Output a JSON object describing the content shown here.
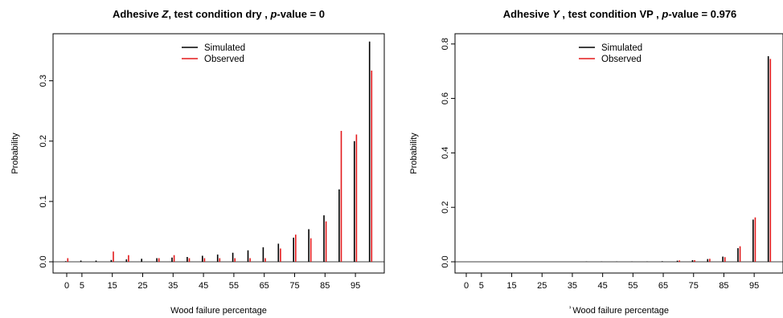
{
  "chart_data": [
    {
      "type": "bar",
      "title": {
        "prefix": "Adhesive ",
        "adhesive": "Z",
        "middle": ",  test condition dry , ",
        "pvalue_label": "p",
        "pvalue_rest": "-value = 0"
      },
      "xlabel": "Wood failure percentage",
      "ylabel": "Probability",
      "ylim": [
        0,
        0.37
      ],
      "yticks": [
        0.0,
        0.1,
        0.2,
        0.3
      ],
      "ytick_labels": [
        "0.0",
        "0.1",
        "0.2",
        "0.3"
      ],
      "xtick_labels": [
        "0",
        "5",
        "15",
        "25",
        "35",
        "45",
        "55",
        "65",
        "75",
        "85",
        "95"
      ],
      "xtick_values": [
        0,
        5,
        15,
        25,
        35,
        45,
        55,
        65,
        75,
        85,
        95
      ],
      "x": [
        0,
        5,
        10,
        15,
        20,
        25,
        30,
        35,
        40,
        45,
        50,
        55,
        60,
        65,
        70,
        75,
        80,
        85,
        90,
        95,
        100
      ],
      "series": [
        {
          "name": "Simulated",
          "color": "#000000",
          "values": [
            0.001,
            0.002,
            0.002,
            0.003,
            0.004,
            0.005,
            0.006,
            0.007,
            0.008,
            0.01,
            0.012,
            0.015,
            0.019,
            0.024,
            0.03,
            0.04,
            0.054,
            0.077,
            0.12,
            0.2,
            0.365
          ]
        },
        {
          "name": "Observed",
          "color": "#e31a1c",
          "values": [
            0.006,
            0.0,
            0.0,
            0.017,
            0.011,
            0.0,
            0.006,
            0.011,
            0.006,
            0.006,
            0.006,
            0.006,
            0.006,
            0.006,
            0.022,
            0.045,
            0.039,
            0.067,
            0.217,
            0.211,
            0.317
          ]
        }
      ]
    },
    {
      "type": "bar",
      "title": {
        "prefix": "Adhesive ",
        "adhesive": "Y",
        "middle": " ,  test condition VP , ",
        "pvalue_label": "p",
        "pvalue_rest": "-value = 0.976"
      },
      "xlabel": "Wood failure percentage",
      "xlabel_prefix": "¹",
      "ylabel": "Probability",
      "ylim": [
        0,
        0.82
      ],
      "yticks": [
        0.0,
        0.2,
        0.4,
        0.6,
        0.8
      ],
      "ytick_labels": [
        "0.0",
        "0.2",
        "0.4",
        "0.6",
        "0.8"
      ],
      "xtick_labels": [
        "0",
        "5",
        "15",
        "25",
        "35",
        "45",
        "55",
        "65",
        "75",
        "85",
        "95"
      ],
      "xtick_values": [
        0,
        5,
        15,
        25,
        35,
        45,
        55,
        65,
        75,
        85,
        95
      ],
      "x": [
        0,
        5,
        10,
        15,
        20,
        25,
        30,
        35,
        40,
        45,
        50,
        55,
        60,
        65,
        70,
        75,
        80,
        85,
        90,
        95,
        100
      ],
      "series": [
        {
          "name": "Simulated",
          "color": "#000000",
          "values": [
            0,
            0,
            0,
            0,
            0,
            0,
            0,
            0,
            0.001,
            0.001,
            0.001,
            0.001,
            0.001,
            0.002,
            0.004,
            0.006,
            0.01,
            0.019,
            0.05,
            0.155,
            0.755
          ]
        },
        {
          "name": "Observed",
          "color": "#e31a1c",
          "values": [
            0,
            0,
            0,
            0,
            0,
            0,
            0,
            0,
            0,
            0,
            0,
            0,
            0,
            0,
            0.005,
            0.006,
            0.011,
            0.017,
            0.057,
            0.163,
            0.745
          ]
        }
      ]
    }
  ]
}
